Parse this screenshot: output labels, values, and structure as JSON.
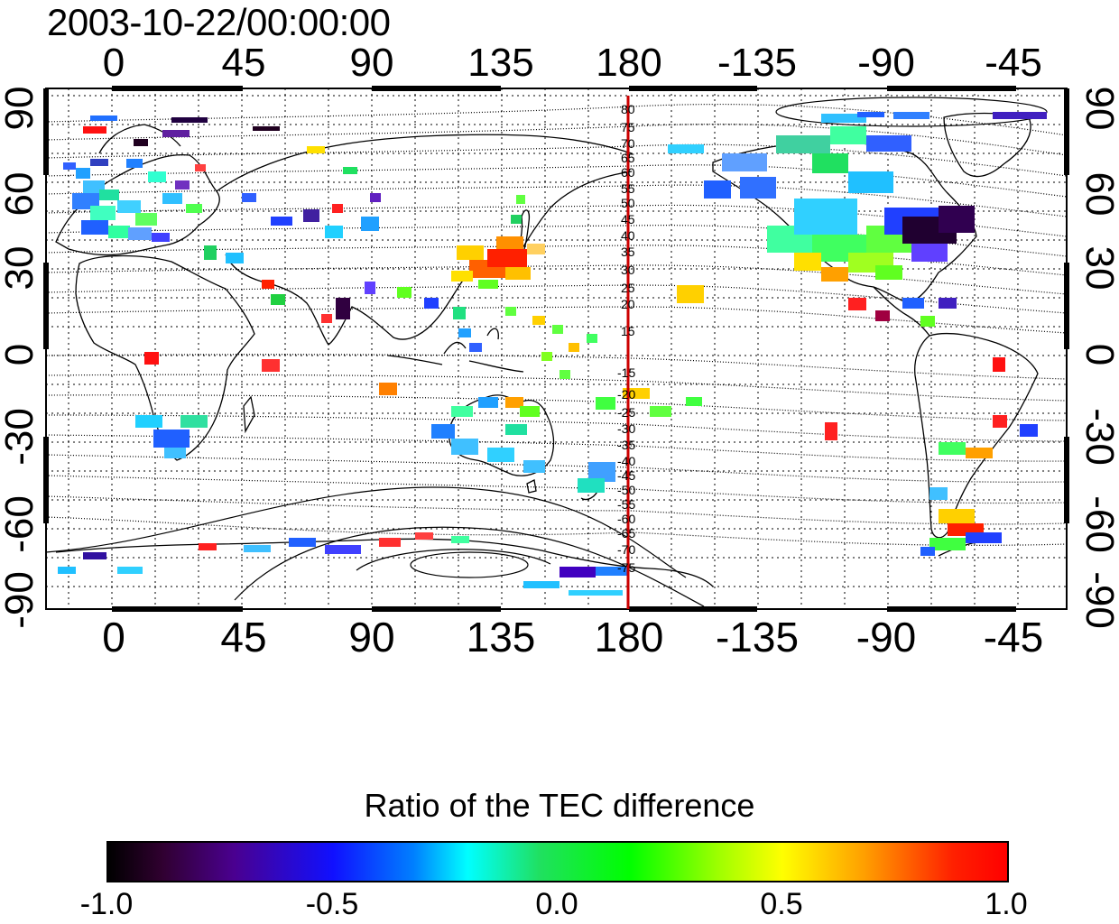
{
  "header": {
    "timestamp": "2003-10-22/00:00:00"
  },
  "map": {
    "lon_ticks_top": [
      "0",
      "45",
      "90",
      "135",
      "180",
      "-135",
      "-90",
      "-45"
    ],
    "lon_ticks_bottom": [
      "0",
      "45",
      "90",
      "135",
      "180",
      "-135",
      "-90",
      "-45"
    ],
    "lat_ticks_left": [
      "90",
      "60",
      "30",
      "0",
      "-30",
      "-60",
      "-90"
    ],
    "lat_ticks_right": [
      "90",
      "60",
      "30",
      "0",
      "-30",
      "-60",
      "-90"
    ],
    "meridian_marker_lon": 180,
    "meridian_color": "#cc0000",
    "contour_labels_north": [
      "80",
      "75",
      "70",
      "65",
      "60",
      "55",
      "50",
      "45",
      "40",
      "35",
      "30",
      "25",
      "20",
      "15"
    ],
    "contour_labels_south": [
      "-15",
      "-20",
      "-25",
      "-30",
      "-35",
      "-40",
      "-45",
      "-50",
      "-55",
      "-60",
      "-65",
      "-70",
      "-75"
    ]
  },
  "colorbar": {
    "title": "Ratio of the TEC difference",
    "tick_labels": [
      "-1.0",
      "-0.5",
      "0.0",
      "0.5",
      "1.0"
    ],
    "range": [
      -1.0,
      1.0
    ]
  }
}
